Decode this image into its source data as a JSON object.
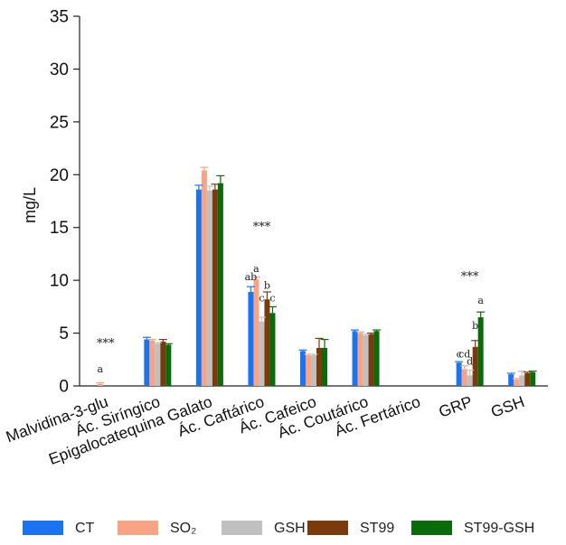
{
  "chart_data": {
    "type": "bar",
    "title": "",
    "xlabel": "",
    "ylabel": "mg/L",
    "ylim": [
      0,
      35
    ],
    "yticks": [
      0,
      5,
      10,
      15,
      20,
      25,
      30,
      35
    ],
    "grid": false,
    "legend_position": "bottom",
    "categories": [
      "Malvidina-3-glu",
      "Ác. Siríngico",
      "Epigalocatequina Galato",
      "Ác. Caftárico",
      "Ác. Cafeico",
      "Ác. Coutárico",
      "Ác. Fertárico",
      "GRP",
      "GSH"
    ],
    "series": [
      {
        "name": "CT",
        "color": "#1a73f0",
        "values": [
          0,
          4.4,
          18.6,
          8.9,
          3.3,
          5.2,
          0,
          2.2,
          1.1
        ],
        "errors": [
          0,
          0.2,
          0.4,
          0.5,
          0.1,
          0.1,
          0,
          0.1,
          0.1
        ]
      },
      {
        "name": "SO₂",
        "color": "#f7a384",
        "values": [
          0.2,
          4.3,
          20.4,
          10.1,
          2.9,
          5.0,
          0,
          1.6,
          0.6
        ],
        "errors": [
          0.1,
          0.1,
          0.3,
          0.2,
          0.1,
          0.1,
          0,
          0.3,
          0.1
        ]
      },
      {
        "name": "GSH",
        "color": "#c0c0c0",
        "values": [
          0,
          4.0,
          18.5,
          6.1,
          2.9,
          4.8,
          0,
          1.0,
          1.0
        ],
        "errors": [
          0,
          0.1,
          0.4,
          0.4,
          0.1,
          0.1,
          0,
          0.5,
          0.4
        ]
      },
      {
        "name": "ST99",
        "color": "#7b3a0c",
        "values": [
          0,
          4.2,
          18.6,
          8.2,
          3.6,
          4.9,
          0,
          3.7,
          1.2
        ],
        "errors": [
          0,
          0.2,
          0.5,
          0.7,
          0.9,
          0.1,
          0,
          0.6,
          0.1
        ]
      },
      {
        "name": "ST99-GSH",
        "color": "#0a6b0a",
        "values": [
          0,
          3.9,
          19.2,
          6.9,
          3.6,
          5.2,
          0,
          6.5,
          1.3
        ],
        "errors": [
          0,
          0.1,
          0.7,
          0.6,
          0.8,
          0.1,
          0,
          0.5,
          0.1
        ]
      }
    ],
    "annotations": [
      {
        "text": "***",
        "category": 0,
        "y": 3.7,
        "kind": "stars"
      },
      {
        "text": "a",
        "category": 0,
        "series": 1,
        "y": 1.3,
        "kind": "letter"
      },
      {
        "text": "***",
        "category": 3,
        "y": 14.7,
        "kind": "stars"
      },
      {
        "text": "ab",
        "category": 3,
        "series": 0,
        "y": 10.0,
        "kind": "letter"
      },
      {
        "text": "a",
        "category": 3,
        "series": 1,
        "y": 10.8,
        "kind": "letter"
      },
      {
        "text": "c",
        "category": 3,
        "series": 2,
        "y": 8.0,
        "kind": "letter"
      },
      {
        "text": "b",
        "category": 3,
        "series": 3,
        "y": 9.2,
        "kind": "letter"
      },
      {
        "text": "c",
        "category": 3,
        "series": 4,
        "y": 8.0,
        "kind": "letter"
      },
      {
        "text": "***",
        "category": 7,
        "y": 10.0,
        "kind": "stars"
      },
      {
        "text": "c",
        "category": 7,
        "series": 0,
        "y": 2.7,
        "kind": "letter"
      },
      {
        "text": "cd",
        "category": 7,
        "series": 1,
        "y": 2.7,
        "kind": "letter"
      },
      {
        "text": "d",
        "category": 7,
        "series": 2,
        "y": 2.0,
        "kind": "letter"
      },
      {
        "text": "b",
        "category": 7,
        "series": 3,
        "y": 5.4,
        "kind": "letter"
      },
      {
        "text": "a",
        "category": 7,
        "series": 4,
        "y": 7.8,
        "kind": "letter"
      }
    ]
  }
}
